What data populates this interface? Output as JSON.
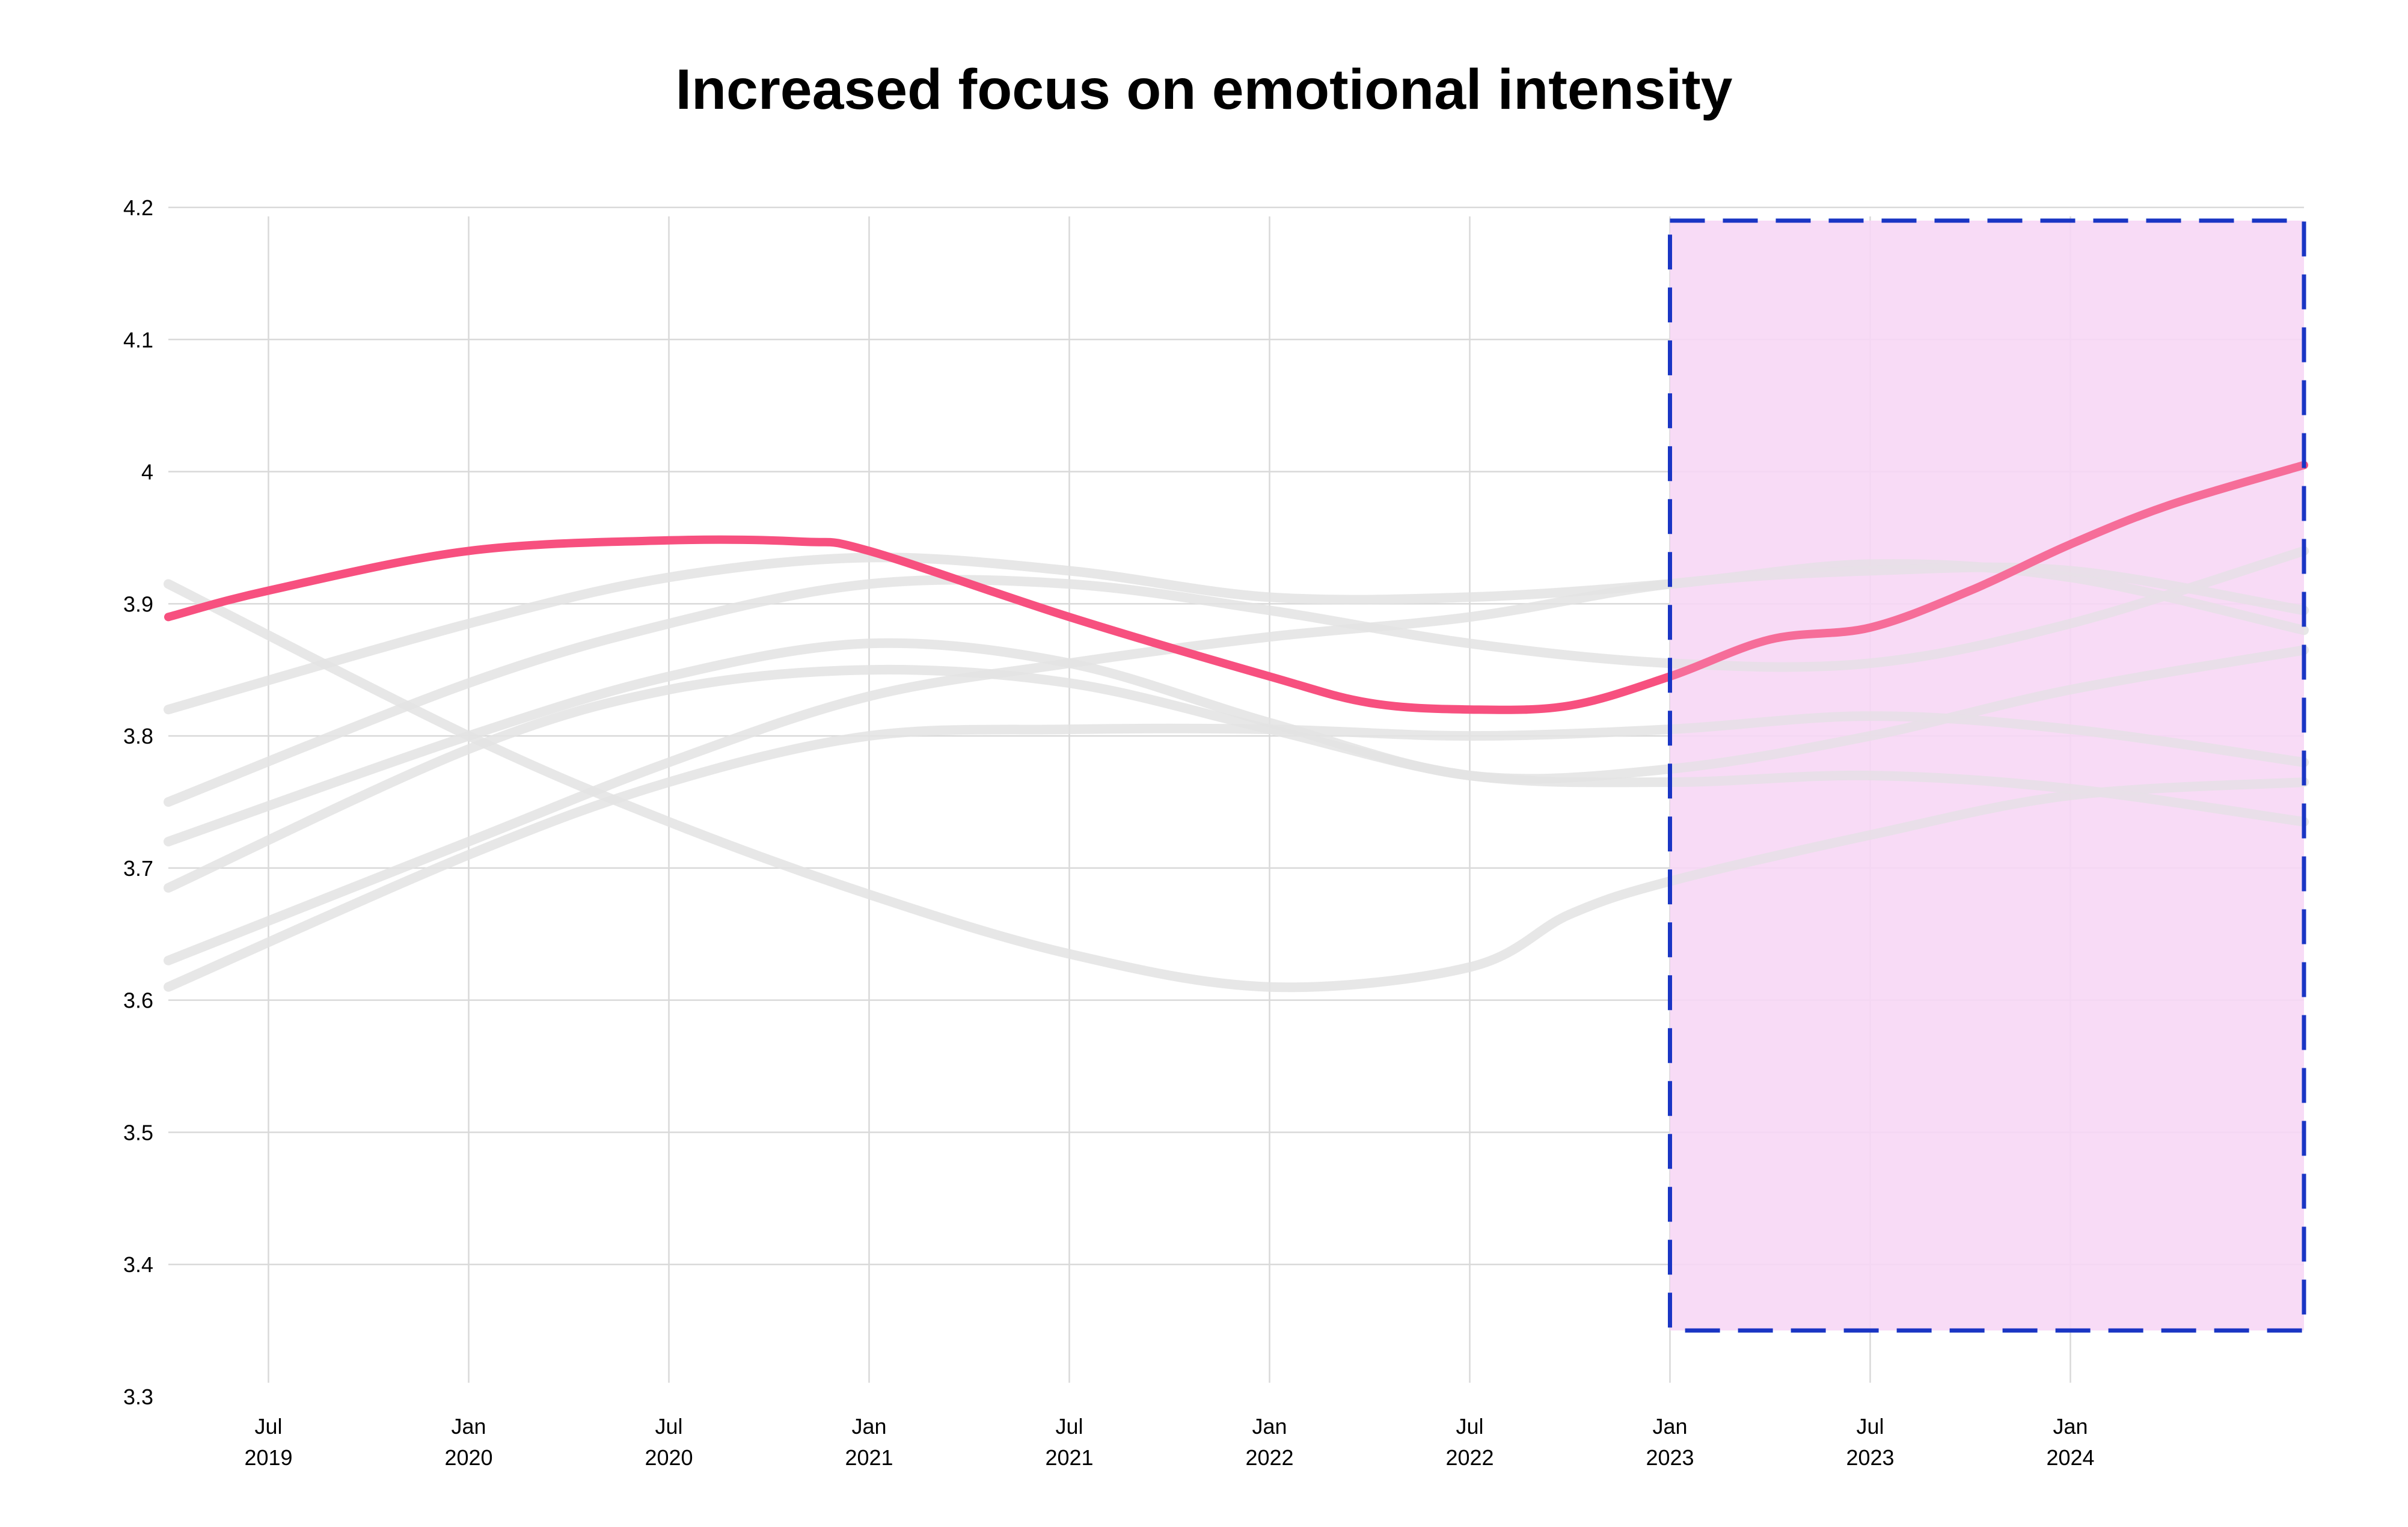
{
  "chart_data": {
    "type": "line",
    "title": "Increased focus on emotional intensity",
    "xlabel": "",
    "ylabel": "",
    "ylim": [
      3.3,
      4.2
    ],
    "yticks": [
      "4.2",
      "4.1",
      "4",
      "3.9",
      "3.8",
      "3.7",
      "3.6",
      "3.5",
      "3.4",
      "3.3"
    ],
    "xlim": [
      "2019-04",
      "2024-08"
    ],
    "xticks": [
      {
        "month": "Jul",
        "year": "2019",
        "date": "2019-07"
      },
      {
        "month": "Jan",
        "year": "2020",
        "date": "2020-01"
      },
      {
        "month": "Jul",
        "year": "2020",
        "date": "2020-07"
      },
      {
        "month": "Jan",
        "year": "2021",
        "date": "2021-01"
      },
      {
        "month": "Jul",
        "year": "2021",
        "date": "2021-07"
      },
      {
        "month": "Jan",
        "year": "2022",
        "date": "2022-01"
      },
      {
        "month": "Jul",
        "year": "2022",
        "date": "2022-07"
      },
      {
        "month": "Jan",
        "year": "2023",
        "date": "2023-01"
      },
      {
        "month": "Jul",
        "year": "2023",
        "date": "2023-07"
      },
      {
        "month": "Jan",
        "year": "2024",
        "date": "2024-01"
      }
    ],
    "grid": true,
    "highlight_region": {
      "x": [
        "2023-01",
        "2024-08"
      ],
      "y": [
        3.35,
        4.19
      ],
      "fill": "#f8d7f6",
      "border": "#1a35c4"
    },
    "highlight_series": {
      "color": "#f7507f",
      "points": [
        [
          "2019-04",
          3.89
        ],
        [
          "2019-07",
          3.91
        ],
        [
          "2020-01",
          3.94
        ],
        [
          "2020-07",
          3.948
        ],
        [
          "2020-11",
          3.947
        ],
        [
          "2021-01",
          3.94
        ],
        [
          "2021-07",
          3.89
        ],
        [
          "2022-01",
          3.845
        ],
        [
          "2022-04",
          3.825
        ],
        [
          "2022-07",
          3.82
        ],
        [
          "2022-10",
          3.823
        ],
        [
          "2023-01",
          3.845
        ],
        [
          "2023-04",
          3.873
        ],
        [
          "2023-07",
          3.882
        ],
        [
          "2023-10",
          3.91
        ],
        [
          "2024-01",
          3.945
        ],
        [
          "2024-04",
          3.975
        ],
        [
          "2024-08",
          4.005
        ]
      ]
    },
    "background_series": {
      "color": "#e3e3e3",
      "lines": [
        [
          [
            "2019-04",
            3.915
          ],
          [
            "2020-01",
            3.8
          ],
          [
            "2020-07",
            3.735
          ],
          [
            "2021-01",
            3.68
          ],
          [
            "2021-07",
            3.635
          ],
          [
            "2022-01",
            3.61
          ],
          [
            "2022-07",
            3.625
          ],
          [
            "2022-10",
            3.665
          ],
          [
            "2023-01",
            3.69
          ],
          [
            "2023-07",
            3.725
          ],
          [
            "2024-01",
            3.755
          ],
          [
            "2024-08",
            3.765
          ]
        ],
        [
          [
            "2019-04",
            3.82
          ],
          [
            "2020-01",
            3.885
          ],
          [
            "2020-07",
            3.92
          ],
          [
            "2021-01",
            3.935
          ],
          [
            "2021-07",
            3.925
          ],
          [
            "2022-01",
            3.905
          ],
          [
            "2022-07",
            3.905
          ],
          [
            "2023-01",
            3.915
          ],
          [
            "2023-07",
            3.93
          ],
          [
            "2024-01",
            3.92
          ],
          [
            "2024-08",
            3.88
          ]
        ],
        [
          [
            "2019-04",
            3.75
          ],
          [
            "2020-01",
            3.84
          ],
          [
            "2020-07",
            3.885
          ],
          [
            "2021-01",
            3.915
          ],
          [
            "2021-07",
            3.915
          ],
          [
            "2022-01",
            3.895
          ],
          [
            "2022-07",
            3.87
          ],
          [
            "2023-01",
            3.855
          ],
          [
            "2023-07",
            3.855
          ],
          [
            "2024-01",
            3.885
          ],
          [
            "2024-08",
            3.94
          ]
        ],
        [
          [
            "2019-04",
            3.72
          ],
          [
            "2020-01",
            3.8
          ],
          [
            "2020-07",
            3.845
          ],
          [
            "2021-01",
            3.87
          ],
          [
            "2021-07",
            3.855
          ],
          [
            "2022-01",
            3.81
          ],
          [
            "2022-07",
            3.77
          ],
          [
            "2023-01",
            3.775
          ],
          [
            "2023-07",
            3.8
          ],
          [
            "2024-01",
            3.835
          ],
          [
            "2024-08",
            3.865
          ]
        ],
        [
          [
            "2019-04",
            3.685
          ],
          [
            "2020-01",
            3.79
          ],
          [
            "2020-07",
            3.835
          ],
          [
            "2021-01",
            3.85
          ],
          [
            "2021-07",
            3.84
          ],
          [
            "2022-01",
            3.805
          ],
          [
            "2022-07",
            3.77
          ],
          [
            "2023-01",
            3.765
          ],
          [
            "2023-07",
            3.77
          ],
          [
            "2024-01",
            3.76
          ],
          [
            "2024-08",
            3.735
          ]
        ],
        [
          [
            "2019-04",
            3.63
          ],
          [
            "2020-01",
            3.72
          ],
          [
            "2020-07",
            3.78
          ],
          [
            "2021-01",
            3.83
          ],
          [
            "2021-07",
            3.855
          ],
          [
            "2022-01",
            3.875
          ],
          [
            "2022-07",
            3.89
          ],
          [
            "2023-01",
            3.915
          ],
          [
            "2023-07",
            3.925
          ],
          [
            "2024-01",
            3.925
          ],
          [
            "2024-08",
            3.895
          ]
        ],
        [
          [
            "2019-04",
            3.61
          ],
          [
            "2020-01",
            3.71
          ],
          [
            "2020-07",
            3.765
          ],
          [
            "2021-01",
            3.8
          ],
          [
            "2021-07",
            3.805
          ],
          [
            "2022-01",
            3.805
          ],
          [
            "2022-07",
            3.8
          ],
          [
            "2023-01",
            3.805
          ],
          [
            "2023-07",
            3.815
          ],
          [
            "2024-01",
            3.805
          ],
          [
            "2024-08",
            3.78
          ]
        ]
      ]
    }
  }
}
